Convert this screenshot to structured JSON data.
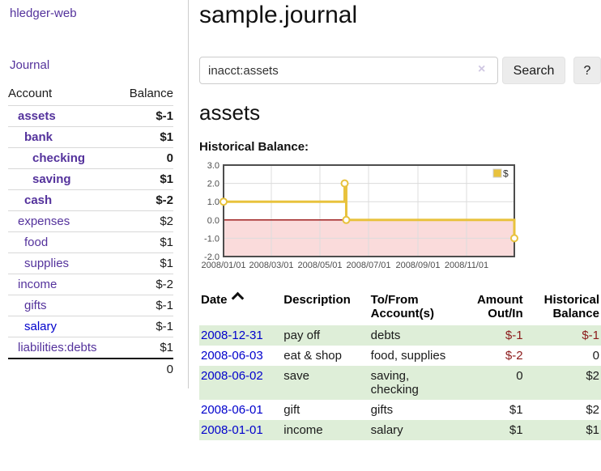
{
  "app": {
    "title": "hledger-web"
  },
  "sidebar": {
    "journal_link": "Journal",
    "accounts": {
      "header_account": "Account",
      "header_balance": "Balance",
      "rows": [
        {
          "name": "assets",
          "depth": 1,
          "bold": true,
          "balance": "$-1",
          "balance_class": "neg-strong"
        },
        {
          "name": "bank",
          "depth": 2,
          "bold": true,
          "balance": "$1",
          "balance_class": ""
        },
        {
          "name": "checking",
          "depth": 3,
          "bold": true,
          "balance": "0",
          "balance_class": ""
        },
        {
          "name": "saving",
          "depth": 3,
          "bold": true,
          "balance": "$1",
          "balance_class": ""
        },
        {
          "name": "cash",
          "depth": 2,
          "bold": true,
          "balance": "$-2",
          "balance_class": "neg-strong"
        },
        {
          "name": "expenses",
          "depth": 1,
          "bold": false,
          "balance": "$2",
          "balance_class": ""
        },
        {
          "name": "food",
          "depth": 2,
          "bold": false,
          "balance": "$1",
          "balance_class": ""
        },
        {
          "name": "supplies",
          "depth": 2,
          "bold": false,
          "balance": "$1",
          "balance_class": ""
        },
        {
          "name": "income",
          "depth": 1,
          "bold": false,
          "balance": "$-2",
          "balance_class": "neg-muted"
        },
        {
          "name": "gifts",
          "depth": 2,
          "bold": false,
          "balance": "$-1",
          "balance_class": "neg-muted"
        },
        {
          "name": "salary",
          "depth": 2,
          "bold": false,
          "unvisited": true,
          "balance": "$-1",
          "balance_class": "neg-muted"
        },
        {
          "name": "liabilities:debts",
          "depth": 1,
          "bold": false,
          "balance": "$1",
          "balance_class": ""
        }
      ],
      "total": "0"
    }
  },
  "main": {
    "title": "sample.journal",
    "search": {
      "value": "inacct:assets",
      "clear_icon": "×",
      "button_label": "Search",
      "help_label": "?"
    },
    "account_heading": "assets",
    "chart_heading": "Historical Balance:"
  },
  "chart_data": {
    "type": "line",
    "style": "step",
    "title": "Historical Balance",
    "series": [
      {
        "name": "$",
        "color": "#e8c23d",
        "points": [
          [
            "2008-01-01",
            1
          ],
          [
            "2008-06-01",
            2
          ],
          [
            "2008-06-03",
            0
          ],
          [
            "2008-12-31",
            -1
          ]
        ]
      }
    ],
    "x_ticks": [
      "2008/01/01",
      "2008/03/01",
      "2008/05/01",
      "2008/07/01",
      "2008/09/01",
      "2008/11/01"
    ],
    "y_ticks": [
      3.0,
      2.0,
      1.0,
      0.0,
      -1.0,
      -2.0
    ],
    "xlim": [
      "2008-01-01",
      "2008-12-31"
    ],
    "ylim": [
      -2,
      3
    ],
    "grid": true,
    "legend": {
      "label": "$",
      "position": "top-right"
    },
    "colors": {
      "negative_region": "#fadbdb",
      "zero_line": "#9e1f1f",
      "grid": "#dcdcdc",
      "frame": "#4d4d4d",
      "marker_fill": "#ffffff",
      "tick_text": "#4d4d4d"
    }
  },
  "register": {
    "headers": {
      "date": "Date",
      "description": "Description",
      "accounts": "To/From Account(s)",
      "amount": "Amount Out/In",
      "balance": "Historical Balance"
    },
    "sort": {
      "column": "date",
      "direction": "ascending"
    },
    "rows": [
      {
        "date": "2008-12-31",
        "description": "pay off",
        "accounts": "debts",
        "amount": "$-1",
        "amount_negative": true,
        "balance": "$-1",
        "balance_negative": true
      },
      {
        "date": "2008-06-03",
        "description": "eat & shop",
        "accounts": "food, supplies",
        "amount": "$-2",
        "amount_negative": true,
        "balance": "0",
        "balance_negative": false
      },
      {
        "date": "2008-06-02",
        "description": "save",
        "accounts": "saving, checking",
        "amount": "0",
        "amount_negative": false,
        "balance": "$2",
        "balance_negative": false
      },
      {
        "date": "2008-06-01",
        "description": "gift",
        "accounts": "gifts",
        "amount": "$1",
        "amount_negative": false,
        "balance": "$2",
        "balance_negative": false
      },
      {
        "date": "2008-01-01",
        "description": "income",
        "accounts": "salary",
        "amount": "$1",
        "amount_negative": false,
        "balance": "$1",
        "balance_negative": false
      }
    ]
  },
  "colors": {
    "link_purple": "#54329c",
    "link_blue": "#0000cc",
    "negative_strong": "#8b1a1a",
    "negative_muted": "#b86f6f",
    "row_stripe_green": "#deeed8",
    "button_bg": "#ececec",
    "divider": "#cccccc"
  }
}
